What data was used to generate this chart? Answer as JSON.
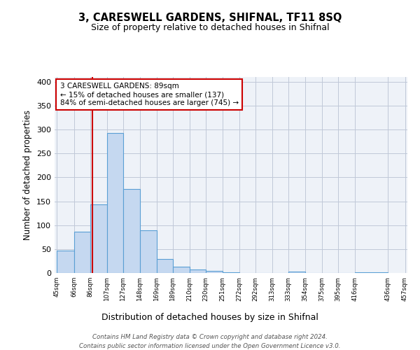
{
  "title": "3, CARESWELL GARDENS, SHIFNAL, TF11 8SQ",
  "subtitle": "Size of property relative to detached houses in Shifnal",
  "xlabel": "Distribution of detached houses by size in Shifnal",
  "ylabel": "Number of detached properties",
  "bar_values": [
    47,
    86,
    144,
    293,
    175,
    90,
    30,
    13,
    8,
    4,
    1,
    0,
    0,
    0,
    3,
    0,
    0,
    0,
    2
  ],
  "bin_edges": [
    45,
    66,
    86,
    107,
    127,
    148,
    169,
    189,
    210,
    230,
    251,
    272,
    292,
    313,
    333,
    354,
    375,
    395,
    416,
    457
  ],
  "tick_labels": [
    "45sqm",
    "66sqm",
    "86sqm",
    "107sqm",
    "127sqm",
    "148sqm",
    "169sqm",
    "189sqm",
    "210sqm",
    "230sqm",
    "251sqm",
    "272sqm",
    "292sqm",
    "313sqm",
    "333sqm",
    "354sqm",
    "375sqm",
    "395sqm",
    "416sqm",
    "436sqm",
    "457sqm"
  ],
  "property_line_x": 89,
  "bar_color": "#c5d8f0",
  "bar_edge_color": "#5a9fd4",
  "line_color": "#cc0000",
  "annotation_box_color": "#cc0000",
  "annotation_text": "3 CARESWELL GARDENS: 89sqm\n← 15% of detached houses are smaller (137)\n84% of semi-detached houses are larger (745) →",
  "ylim": [
    0,
    410
  ],
  "grid_color": "#c0c8d8",
  "background_color": "#eef2f8",
  "footer_line1": "Contains HM Land Registry data © Crown copyright and database right 2024.",
  "footer_line2": "Contains public sector information licensed under the Open Government Licence v3.0."
}
